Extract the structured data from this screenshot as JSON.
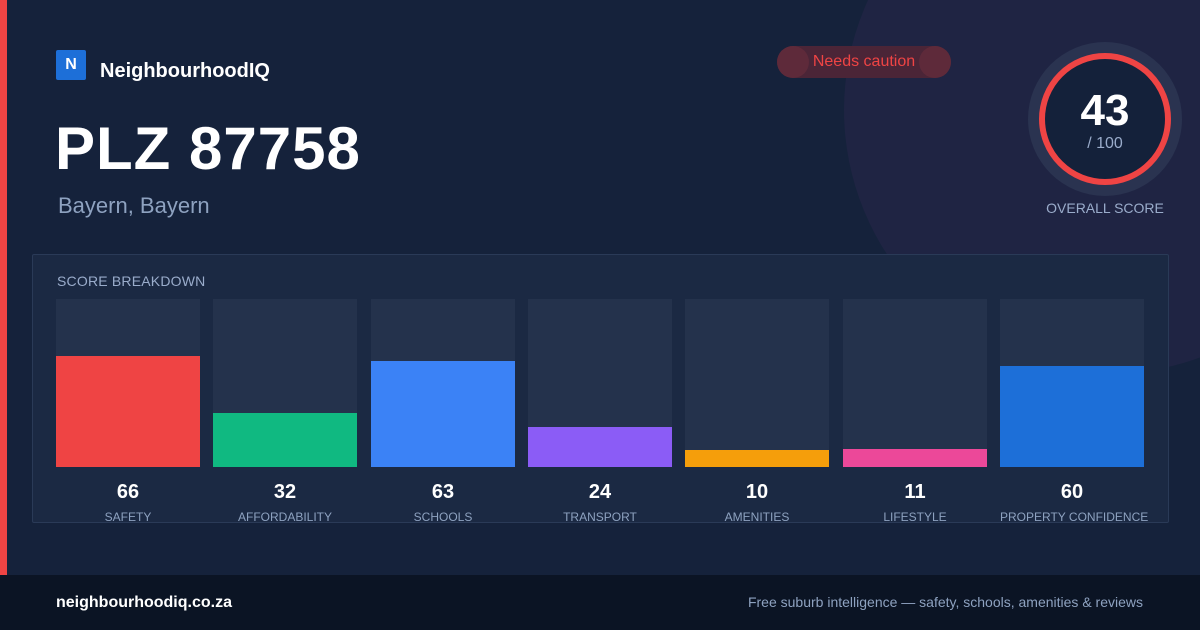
{
  "brand": {
    "logo_letter": "N",
    "name": "NeighbourhoodIQ"
  },
  "header": {
    "title": "PLZ 87758",
    "subtitle": "Bayern, Bayern"
  },
  "status": {
    "label": "Needs caution",
    "color": "#ef4444"
  },
  "overall": {
    "score": "43",
    "max": "/ 100",
    "caption": "OVERALL SCORE",
    "ring_color": "#ef4444"
  },
  "colors": {
    "accent": "#ef4444",
    "brand": "#1d6fd8",
    "background": "#15223b"
  },
  "breakdown": {
    "title": "SCORE BREAKDOWN"
  },
  "chart_data": {
    "type": "bar",
    "title": "SCORE BREAKDOWN",
    "ylim": [
      0,
      100
    ],
    "categories": [
      "SAFETY",
      "AFFORDABILITY",
      "SCHOOLS",
      "TRANSPORT",
      "AMENITIES",
      "LIFESTYLE",
      "PROPERTY CONFIDENCE"
    ],
    "values": [
      66,
      32,
      63,
      24,
      10,
      11,
      60
    ],
    "colors": [
      "#ef4444",
      "#10b981",
      "#3b82f6",
      "#8b5cf6",
      "#f59e0b",
      "#ec4899",
      "#1d6fd8"
    ]
  },
  "footer": {
    "url": "neighbourhoodiq.co.za",
    "tagline": "Free suburb intelligence — safety, schools, amenities & reviews"
  }
}
